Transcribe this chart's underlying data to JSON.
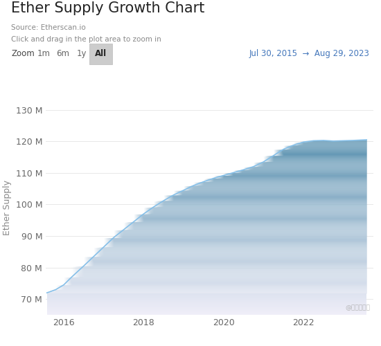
{
  "title": "Ether Supply Growth Chart",
  "source_line1": "Source: Etherscan.io",
  "source_line2": "Click and drag in the plot area to zoom in",
  "zoom_label": "Zoom",
  "zoom_buttons": [
    "1m",
    "6m",
    "1y",
    "All"
  ],
  "active_button": "All",
  "date_range": "Jul 30, 2015  →  Aug 29, 2023",
  "ylabel": "Ether Supply",
  "xlabel": "",
  "ylim": [
    65000000,
    133000000
  ],
  "yticks": [
    70000000,
    80000000,
    90000000,
    100000000,
    110000000,
    120000000,
    130000000
  ],
  "ytick_labels": [
    "70 M",
    "80 M",
    "90 M",
    "100 M",
    "110 M",
    "120 M",
    "130 M"
  ],
  "xtick_positions": [
    2016,
    2018,
    2020,
    2022
  ],
  "xtick_labels": [
    "2016",
    "2018",
    "2020",
    "2022"
  ],
  "line_color": "#85bfe8",
  "fill_color_top": "#90bfdf",
  "fill_color_bottom": "#deedf8",
  "background_color": "#ffffff",
  "grid_color": "#e8e8e8",
  "title_fontsize": 15,
  "label_fontsize": 9,
  "tick_fontsize": 9,
  "watermark": "@刘敌爱投资",
  "xlim_min": 2015.55,
  "xlim_max": 2023.75,
  "x_data": [
    2015.58,
    2015.65,
    2015.8,
    2016.0,
    2016.2,
    2016.5,
    2016.75,
    2017.0,
    2017.25,
    2017.5,
    2017.75,
    2018.0,
    2018.25,
    2018.5,
    2018.75,
    2019.0,
    2019.25,
    2019.5,
    2019.75,
    2020.0,
    2020.25,
    2020.5,
    2020.75,
    2021.0,
    2021.25,
    2021.5,
    2021.75,
    2022.0,
    2022.25,
    2022.5,
    2022.75,
    2023.0,
    2023.25,
    2023.58
  ],
  "y_data": [
    72000000,
    72300000,
    73000000,
    74500000,
    77000000,
    80500000,
    83500000,
    86500000,
    89500000,
    92000000,
    94500000,
    97000000,
    99200000,
    101200000,
    103000000,
    104500000,
    106000000,
    107200000,
    108300000,
    109200000,
    110100000,
    111000000,
    112000000,
    113500000,
    115500000,
    117500000,
    118800000,
    119800000,
    120200000,
    120300000,
    120100000,
    120200000,
    120300000,
    120500000
  ]
}
